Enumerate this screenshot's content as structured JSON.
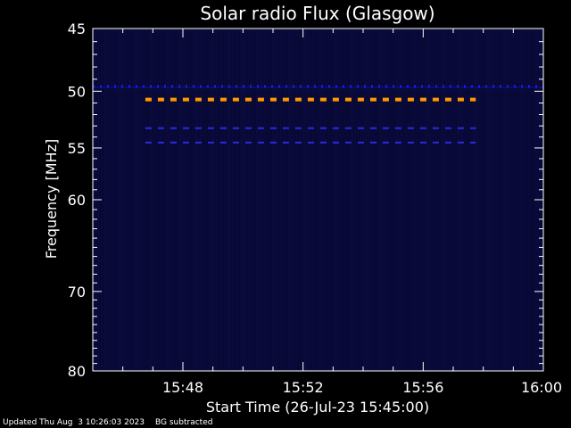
{
  "chart_data": {
    "type": "heatmap",
    "title": "Solar radio Flux (Glasgow)",
    "xlabel": "Start Time (26-Jul-23 15:45:00)",
    "ylabel": "Frequency [MHz]",
    "x_unit": "minutes",
    "xlim": [
      "15:45",
      "16:00"
    ],
    "ylim": [
      45,
      80
    ],
    "y_scale": "log",
    "x_ticks": [
      "15:48",
      "15:52",
      "15:56",
      "16:00"
    ],
    "y_ticks": [
      45,
      50,
      55,
      60,
      70,
      80
    ],
    "background_color": "#000000",
    "spectrogram_color": "#0a0a3c",
    "bands": [
      {
        "freq": 49.6,
        "start": "15:45",
        "end": "16:00",
        "color": "#1a1aff",
        "style": "dotted"
      },
      {
        "freq": 50.7,
        "start": "15:46:45",
        "end": "15:57:45",
        "color": "#ff9900",
        "style": "dashed"
      },
      {
        "freq": 53.2,
        "start": "15:46:45",
        "end": "15:57:45",
        "color": "#2a2adf",
        "style": "dashed"
      },
      {
        "freq": 54.5,
        "start": "15:46:45",
        "end": "15:57:45",
        "color": "#2a2adf",
        "style": "dashed"
      }
    ]
  },
  "footer": {
    "updated": "Updated Thu Aug  3 10:26:03 2023",
    "note": "BG subtracted"
  }
}
